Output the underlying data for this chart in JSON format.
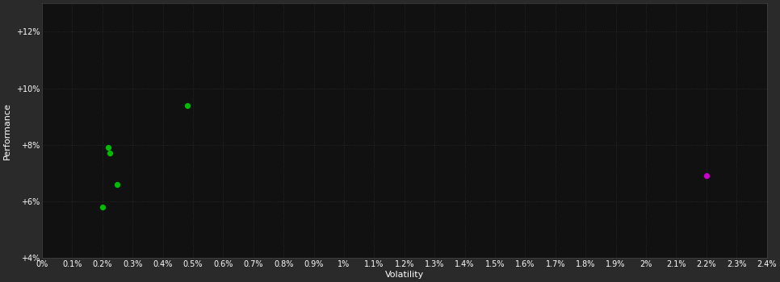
{
  "background_color": "#2a2a2a",
  "plot_bg_color": "#111111",
  "text_color": "#ffffff",
  "xlabel": "Volatility",
  "ylabel": "Performance",
  "xlim": [
    0.0,
    0.024
  ],
  "ylim": [
    0.04,
    0.13
  ],
  "ytick_labels": [
    "+4%",
    "+6%",
    "+8%",
    "+10%",
    "+12%"
  ],
  "ytick_values": [
    0.04,
    0.06,
    0.08,
    0.1,
    0.12
  ],
  "green_points": [
    [
      0.002,
      0.058
    ],
    [
      0.0025,
      0.066
    ],
    [
      0.0048,
      0.094
    ],
    [
      0.0022,
      0.079
    ],
    [
      0.00225,
      0.077
    ]
  ],
  "magenta_points": [
    [
      0.022,
      0.069
    ]
  ],
  "green_color": "#00bb00",
  "magenta_color": "#cc00cc",
  "point_size": 18,
  "tick_fontsize": 7,
  "label_fontsize": 8
}
